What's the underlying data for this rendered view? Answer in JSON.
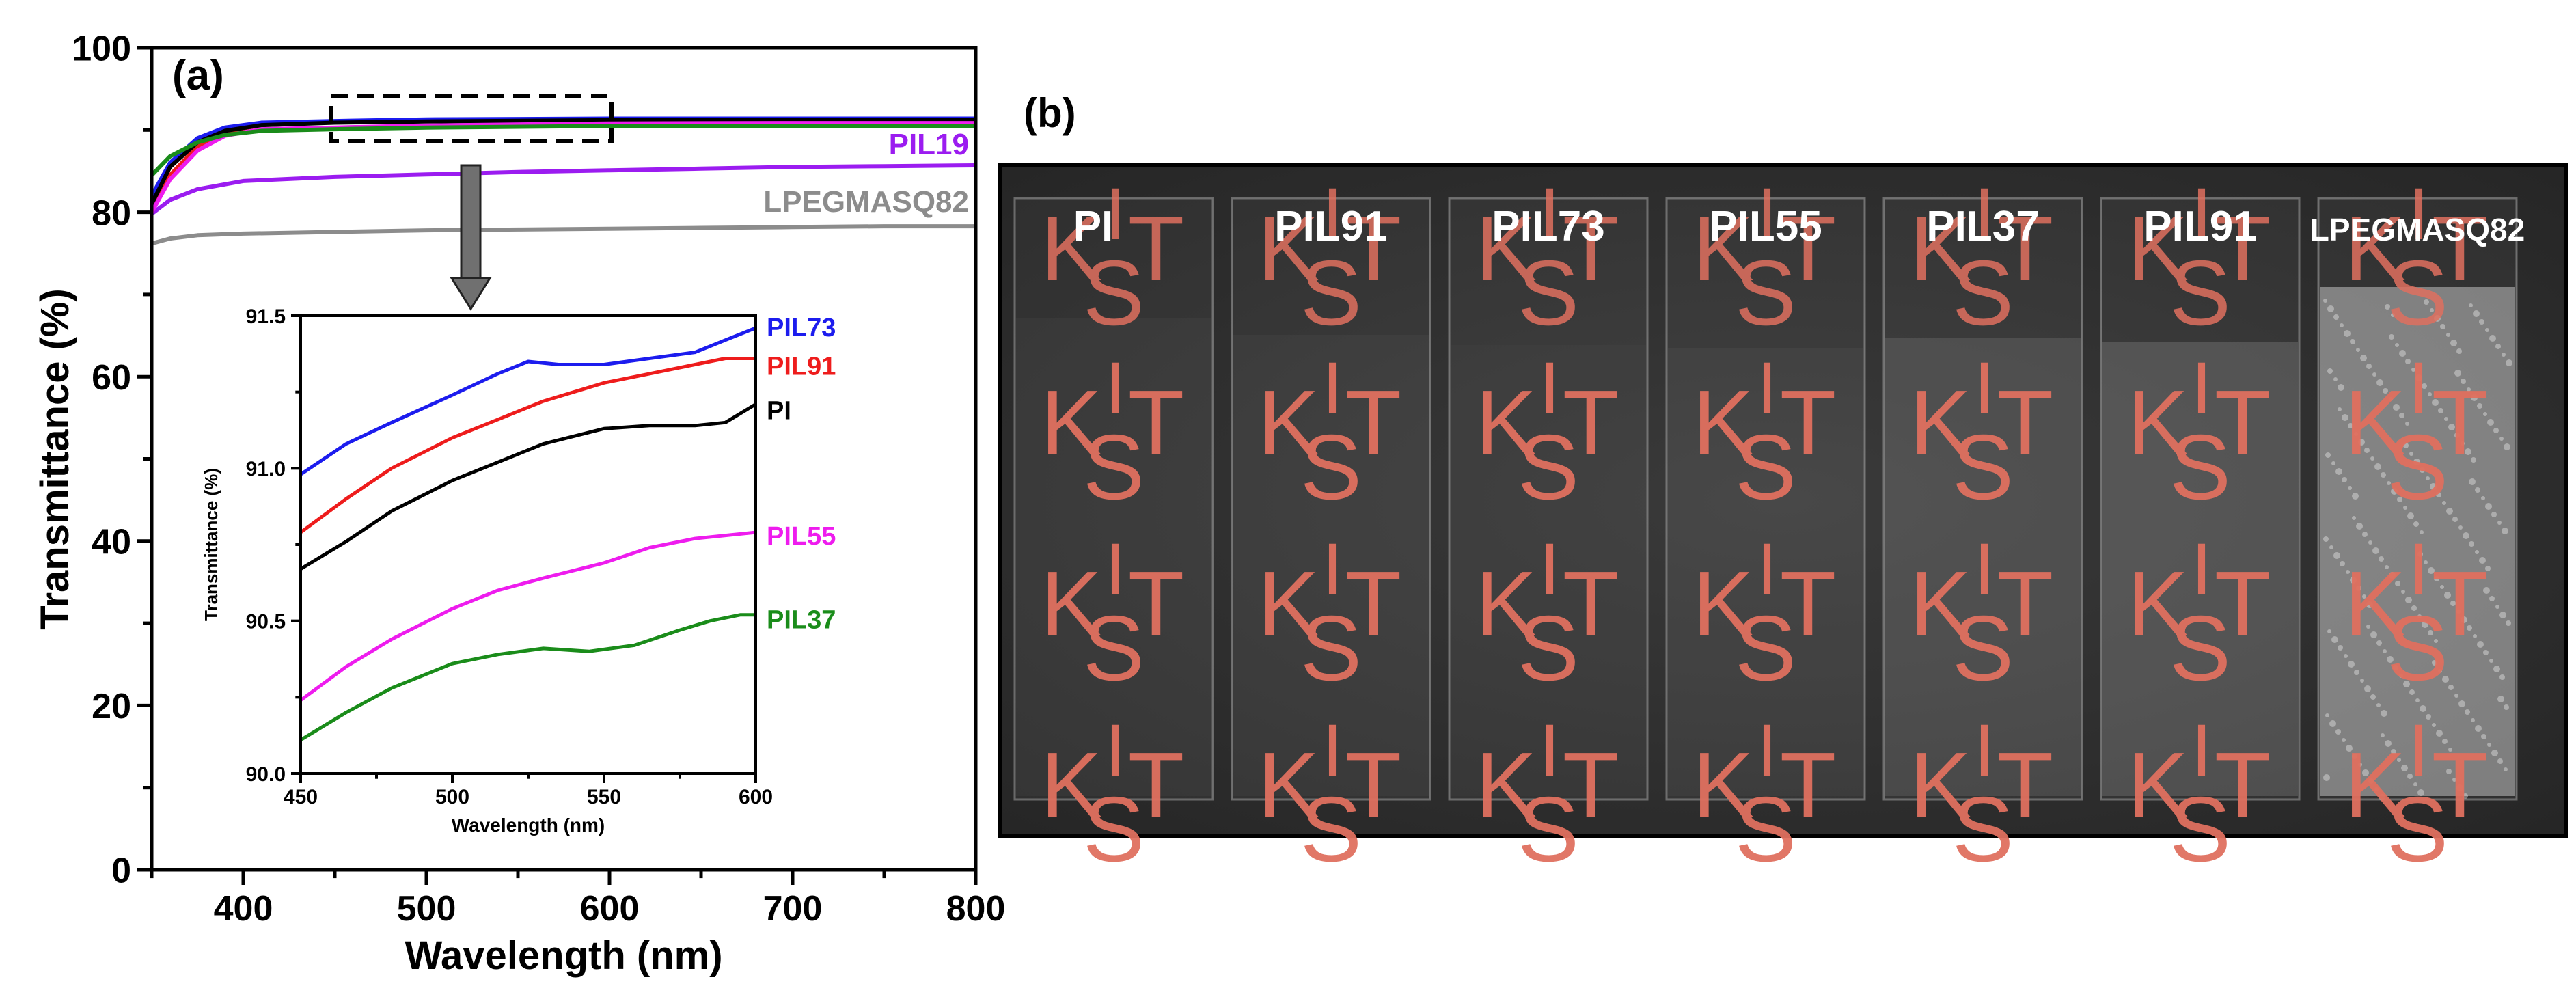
{
  "figure": {
    "panel_a_label": "(a)",
    "panel_b_label": "(b)"
  },
  "chart_data": [
    {
      "id": "main",
      "type": "line",
      "xlabel": "Wavelength (nm)",
      "ylabel": "Transmittance (%)",
      "xlim": [
        350,
        800
      ],
      "ylim": [
        0,
        100
      ],
      "xticks": [
        400,
        500,
        600,
        700,
        800
      ],
      "yticks": [
        0,
        20,
        40,
        60,
        80,
        100
      ],
      "series": [
        {
          "name": "LPEGMASQ82",
          "color": "#8c8c8c",
          "label_visible": true,
          "x": [
            350,
            360,
            375,
            400,
            450,
            500,
            550,
            600,
            650,
            700,
            750,
            800
          ],
          "y": [
            76.2,
            76.8,
            77.2,
            77.4,
            77.6,
            77.8,
            77.9,
            78.0,
            78.1,
            78.2,
            78.3,
            78.3
          ]
        },
        {
          "name": "PIL19",
          "color": "#9b1cf0",
          "label_visible": true,
          "x": [
            350,
            360,
            375,
            400,
            450,
            500,
            550,
            600,
            650,
            700,
            750,
            800
          ],
          "y": [
            79.8,
            81.5,
            82.8,
            83.8,
            84.3,
            84.6,
            84.9,
            85.1,
            85.3,
            85.5,
            85.6,
            85.7
          ]
        },
        {
          "name": "PIL91",
          "color": "#ee1c1c",
          "label_visible": false,
          "x": [
            350,
            360,
            375,
            390,
            410,
            450,
            500,
            600,
            700,
            800
          ],
          "y": [
            80.5,
            84.5,
            88.0,
            89.8,
            90.6,
            90.95,
            91.1,
            91.3,
            91.3,
            91.3
          ]
        },
        {
          "name": "PIL73",
          "color": "#1c1cee",
          "label_visible": false,
          "x": [
            350,
            360,
            375,
            390,
            410,
            450,
            500,
            600,
            700,
            800
          ],
          "y": [
            82.0,
            86.0,
            89.0,
            90.3,
            90.9,
            91.1,
            91.3,
            91.4,
            91.4,
            91.4
          ]
        },
        {
          "name": "PI",
          "color": "#000000",
          "label_visible": false,
          "x": [
            350,
            360,
            375,
            390,
            410,
            450,
            500,
            600,
            700,
            800
          ],
          "y": [
            81.0,
            85.5,
            88.5,
            89.9,
            90.6,
            90.9,
            91.05,
            91.2,
            91.2,
            91.2
          ]
        },
        {
          "name": "PIL55",
          "color": "#ee1cee",
          "label_visible": false,
          "x": [
            350,
            360,
            375,
            390,
            410,
            450,
            500,
            600,
            700,
            800
          ],
          "y": [
            80.0,
            84.0,
            87.5,
            89.3,
            90.1,
            90.3,
            90.55,
            90.8,
            90.85,
            90.85
          ]
        },
        {
          "name": "PIL37",
          "color": "#1a8c1a",
          "label_visible": false,
          "x": [
            350,
            360,
            375,
            390,
            410,
            450,
            500,
            600,
            700,
            800
          ],
          "y": [
            84.5,
            86.8,
            88.5,
            89.4,
            89.9,
            90.1,
            90.3,
            90.5,
            90.5,
            90.5
          ]
        }
      ],
      "annotations": {
        "zoom_box": {
          "x_range": [
            450,
            600
          ],
          "y_range": [
            88.5,
            94
          ]
        },
        "arrow": "points from zoom box to inset"
      }
    },
    {
      "id": "inset",
      "type": "line",
      "xlabel": "Wavelength (nm)",
      "ylabel": "Transmittance (%)",
      "xlim": [
        450,
        600
      ],
      "ylim": [
        90.0,
        91.5
      ],
      "xticks": [
        450,
        500,
        550,
        600
      ],
      "yticks": [
        90.0,
        90.5,
        91.0,
        91.5
      ],
      "series": [
        {
          "name": "PIL73",
          "color": "#1c1cee",
          "x": [
            450,
            465,
            480,
            500,
            515,
            525,
            535,
            550,
            565,
            580,
            590,
            600
          ],
          "y": [
            90.98,
            91.08,
            91.15,
            91.24,
            91.31,
            91.35,
            91.34,
            91.34,
            91.36,
            91.38,
            91.42,
            91.46
          ]
        },
        {
          "name": "PIL91",
          "color": "#ee1c1c",
          "x": [
            450,
            465,
            480,
            500,
            515,
            530,
            550,
            565,
            580,
            590,
            600
          ],
          "y": [
            90.79,
            90.9,
            91.0,
            91.1,
            91.16,
            91.22,
            91.28,
            91.31,
            91.34,
            91.36,
            91.36
          ]
        },
        {
          "name": "PI",
          "color": "#000000",
          "x": [
            450,
            465,
            480,
            500,
            515,
            530,
            550,
            565,
            580,
            590,
            600
          ],
          "y": [
            90.67,
            90.76,
            90.86,
            90.96,
            91.02,
            91.08,
            91.13,
            91.14,
            91.14,
            91.15,
            91.21
          ]
        },
        {
          "name": "PIL55",
          "color": "#ee1cee",
          "x": [
            450,
            465,
            480,
            500,
            515,
            530,
            550,
            565,
            580,
            590,
            600
          ],
          "y": [
            90.24,
            90.35,
            90.44,
            90.54,
            90.6,
            90.64,
            90.69,
            90.74,
            90.77,
            90.78,
            90.79
          ]
        },
        {
          "name": "PIL37",
          "color": "#1a8c1a",
          "x": [
            450,
            465,
            480,
            500,
            515,
            530,
            545,
            560,
            575,
            585,
            595,
            600
          ],
          "y": [
            90.11,
            90.2,
            90.28,
            90.36,
            90.39,
            90.41,
            90.4,
            90.42,
            90.47,
            90.5,
            90.52,
            90.52
          ]
        }
      ]
    }
  ],
  "photo": {
    "samples": [
      "PI",
      "PIL91",
      "PIL73",
      "PIL55",
      "PIL37",
      "PIL91",
      "LPEGMASQ82"
    ],
    "logo_text": "KIST"
  }
}
